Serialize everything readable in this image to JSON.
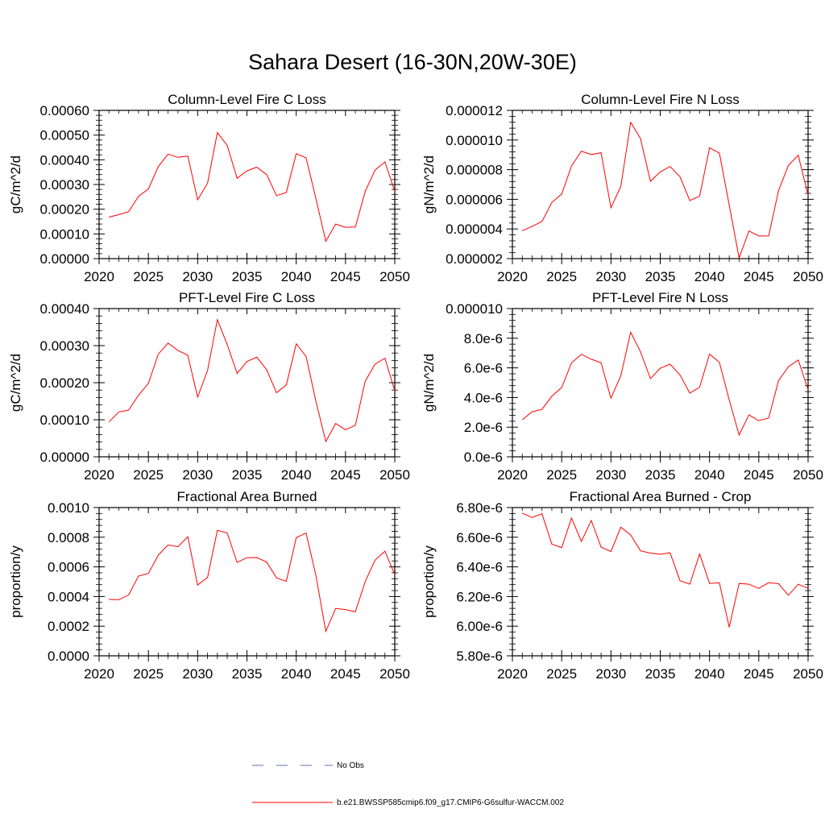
{
  "title": "Sahara Desert (16-30N,20W-30E)",
  "colors": {
    "series": "#ff0000",
    "obs": "#5b6fb0",
    "axis": "#000000"
  },
  "legend": [
    {
      "label": "No Obs",
      "style": "dashed",
      "color": "#5b6fb0"
    },
    {
      "label": "b.e21.BWSSP585cmip6.f09_g17.CMIP6-G6sulfur-WACCM.002",
      "style": "solid",
      "color": "#ff0000"
    }
  ],
  "chart_data": [
    {
      "type": "line",
      "title": "Column-Level Fire C Loss",
      "ylabel": "gC/m^2/d",
      "xlim": [
        2020,
        2050
      ],
      "ylim": [
        0,
        0.0006
      ],
      "xticks": [
        "2020",
        "2025",
        "2030",
        "2035",
        "2040",
        "2045",
        "2050"
      ],
      "yticks": [
        "0.00000",
        "0.00010",
        "0.00020",
        "0.00030",
        "0.00040",
        "0.00050",
        "0.00060"
      ],
      "x": [
        2021,
        2022,
        2023,
        2024,
        2025,
        2026,
        2027,
        2028,
        2029,
        2030,
        2031,
        2032,
        2033,
        2034,
        2035,
        2036,
        2037,
        2038,
        2039,
        2040,
        2041,
        2042,
        2043,
        2044,
        2045,
        2046,
        2047,
        2048,
        2049,
        2050
      ],
      "series": [
        {
          "values": [
            0.000168,
            0.000178,
            0.00019,
            0.000252,
            0.000282,
            0.000372,
            0.000423,
            0.00041,
            0.000415,
            0.000238,
            0.000305,
            0.00051,
            0.000458,
            0.000325,
            0.000355,
            0.00037,
            0.00034,
            0.000255,
            0.000268,
            0.000425,
            0.000408,
            0.000243,
            7e-05,
            0.00014,
            0.000127,
            0.000128,
            0.000272,
            0.000358,
            0.000392,
            0.000272
          ]
        }
      ]
    },
    {
      "type": "line",
      "title": "Column-Level Fire N Loss",
      "ylabel": "gN/m^2/d",
      "xlim": [
        2020,
        2050
      ],
      "ylim": [
        2e-06,
        1.2e-05
      ],
      "xticks": [
        "2020",
        "2025",
        "2030",
        "2035",
        "2040",
        "2045",
        "2050"
      ],
      "yticks": [
        "0.000002",
        "0.000004",
        "0.000006",
        "0.000008",
        "0.000010",
        "0.000012"
      ],
      "x": [
        2021,
        2022,
        2023,
        2024,
        2025,
        2026,
        2027,
        2028,
        2029,
        2030,
        2031,
        2032,
        2033,
        2034,
        2035,
        2036,
        2037,
        2038,
        2039,
        2040,
        2041,
        2042,
        2043,
        2044,
        2045,
        2046,
        2047,
        2048,
        2049,
        2050
      ],
      "series": [
        {
          "values": [
            3.88e-06,
            4.18e-06,
            4.5e-06,
            5.78e-06,
            6.36e-06,
            8.25e-06,
            9.25e-06,
            9.02e-06,
            9.14e-06,
            5.43e-06,
            6.88e-06,
            1.12e-05,
            1.01e-05,
            7.22e-06,
            7.85e-06,
            8.22e-06,
            7.52e-06,
            5.92e-06,
            6.22e-06,
            9.48e-06,
            9.12e-06,
            5.62e-06,
            2.03e-06,
            3.87e-06,
            3.52e-06,
            3.54e-06,
            6.58e-06,
            8.28e-06,
            8.98e-06,
            6.27e-06
          ]
        }
      ]
    },
    {
      "type": "line",
      "title": "PFT-Level Fire C Loss",
      "ylabel": "gC/m^2/d",
      "xlim": [
        2020,
        2050
      ],
      "ylim": [
        0,
        0.0004
      ],
      "xticks": [
        "2020",
        "2025",
        "2030",
        "2035",
        "2040",
        "2045",
        "2050"
      ],
      "yticks": [
        "0.00000",
        "0.00010",
        "0.00020",
        "0.00030",
        "0.00040"
      ],
      "x": [
        2021,
        2022,
        2023,
        2024,
        2025,
        2026,
        2027,
        2028,
        2029,
        2030,
        2031,
        2032,
        2033,
        2034,
        2035,
        2036,
        2037,
        2038,
        2039,
        2040,
        2041,
        2042,
        2043,
        2044,
        2045,
        2046,
        2047,
        2048,
        2049,
        2050
      ],
      "series": [
        {
          "values": [
            9.4e-05,
            0.000121,
            0.000126,
            0.000166,
            0.000198,
            0.000277,
            0.000307,
            0.000287,
            0.000274,
            0.000161,
            0.000233,
            0.00037,
            0.000303,
            0.000225,
            0.000257,
            0.000269,
            0.000235,
            0.000173,
            0.000194,
            0.000305,
            0.000271,
            0.00015,
            4.1e-05,
            9e-05,
            7.3e-05,
            8.5e-05,
            0.000204,
            0.00025,
            0.000266,
            0.000178
          ]
        }
      ]
    },
    {
      "type": "line",
      "title": "PFT-Level Fire N Loss",
      "ylabel": "gN/m^2/d",
      "xlim": [
        2020,
        2050
      ],
      "ylim": [
        0,
        1e-05
      ],
      "xticks": [
        "2020",
        "2025",
        "2030",
        "2035",
        "2040",
        "2045",
        "2050"
      ],
      "yticks": [
        "0.0e-6",
        "2.0e-6",
        "4.0e-6",
        "6.0e-6",
        "8.0e-6",
        "0.000010"
      ],
      "x": [
        2021,
        2022,
        2023,
        2024,
        2025,
        2026,
        2027,
        2028,
        2029,
        2030,
        2031,
        2032,
        2033,
        2034,
        2035,
        2036,
        2037,
        2038,
        2039,
        2040,
        2041,
        2042,
        2043,
        2044,
        2045,
        2046,
        2047,
        2048,
        2049,
        2050
      ],
      "series": [
        {
          "values": [
            2.5e-06,
            3.04e-06,
            3.2e-06,
            4.08e-06,
            4.68e-06,
            6.33e-06,
            6.92e-06,
            6.58e-06,
            6.34e-06,
            3.95e-06,
            5.48e-06,
            8.4e-06,
            7.08e-06,
            5.27e-06,
            5.98e-06,
            6.25e-06,
            5.52e-06,
            4.3e-06,
            4.7e-06,
            6.93e-06,
            6.38e-06,
            3.85e-06,
            1.47e-06,
            2.83e-06,
            2.44e-06,
            2.62e-06,
            5.13e-06,
            6.07e-06,
            6.53e-06,
            4.54e-06
          ]
        }
      ]
    },
    {
      "type": "line",
      "title": "Fractional Area Burned",
      "ylabel": "proportion/y",
      "xlim": [
        2020,
        2050
      ],
      "ylim": [
        0,
        0.001
      ],
      "xticks": [
        "2020",
        "2025",
        "2030",
        "2035",
        "2040",
        "2045",
        "2050"
      ],
      "yticks": [
        "0.0000",
        "0.0002",
        "0.0004",
        "0.0006",
        "0.0008",
        "0.0010"
      ],
      "x": [
        2021,
        2022,
        2023,
        2024,
        2025,
        2026,
        2027,
        2028,
        2029,
        2030,
        2031,
        2032,
        2033,
        2034,
        2035,
        2036,
        2037,
        2038,
        2039,
        2040,
        2041,
        2042,
        2043,
        2044,
        2045,
        2046,
        2047,
        2048,
        2049,
        2050
      ],
      "series": [
        {
          "values": [
            0.000381,
            0.000378,
            0.000411,
            0.000538,
            0.000556,
            0.000679,
            0.000748,
            0.000736,
            0.000803,
            0.000477,
            0.000528,
            0.000846,
            0.000829,
            0.00063,
            0.000662,
            0.000663,
            0.000632,
            0.000526,
            0.000502,
            0.000797,
            0.000828,
            0.000542,
            0.000164,
            0.000319,
            0.000312,
            0.000297,
            0.000501,
            0.000645,
            0.000706,
            0.000548
          ]
        }
      ]
    },
    {
      "type": "line",
      "title": "Fractional Area Burned - Crop",
      "ylabel": "proportion/y",
      "xlim": [
        2020,
        2050
      ],
      "ylim": [
        5.8e-06,
        6.8e-06
      ],
      "xticks": [
        "2020",
        "2025",
        "2030",
        "2035",
        "2040",
        "2045",
        "2050"
      ],
      "yticks": [
        "5.80e-6",
        "6.00e-6",
        "6.20e-6",
        "6.40e-6",
        "6.60e-6",
        "6.80e-6"
      ],
      "x": [
        2021,
        2022,
        2023,
        2024,
        2025,
        2026,
        2027,
        2028,
        2029,
        2030,
        2031,
        2032,
        2033,
        2034,
        2035,
        2036,
        2037,
        2038,
        2039,
        2040,
        2041,
        2042,
        2043,
        2044,
        2045,
        2046,
        2047,
        2048,
        2049,
        2050
      ],
      "series": [
        {
          "values": [
            6.763e-06,
            6.733e-06,
            6.758e-06,
            6.553e-06,
            6.53e-06,
            6.73e-06,
            6.572e-06,
            6.713e-06,
            6.533e-06,
            6.503e-06,
            6.668e-06,
            6.615e-06,
            6.508e-06,
            6.493e-06,
            6.485e-06,
            6.495e-06,
            6.307e-06,
            6.283e-06,
            6.487e-06,
            6.288e-06,
            6.293e-06,
            5.993e-06,
            6.288e-06,
            6.283e-06,
            6.255e-06,
            6.293e-06,
            6.287e-06,
            6.208e-06,
            6.283e-06,
            6.255e-06
          ]
        }
      ]
    }
  ]
}
